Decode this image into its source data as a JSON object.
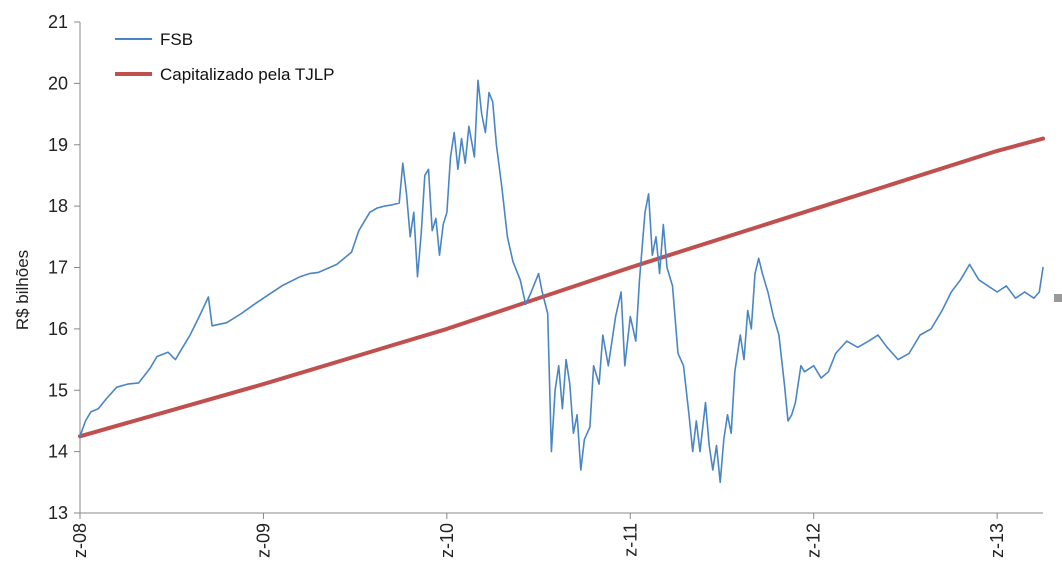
{
  "chart_data": {
    "type": "line",
    "ylabel": "R$ bilhões",
    "ylim": [
      13,
      21
    ],
    "yticks": [
      13,
      14,
      15,
      16,
      17,
      18,
      19,
      20,
      21
    ],
    "xlim": [
      2008.0,
      2013.25
    ],
    "xticks": [
      {
        "x": 2008,
        "label": "z-08"
      },
      {
        "x": 2009,
        "label": "z-09"
      },
      {
        "x": 2010,
        "label": "z-10"
      },
      {
        "x": 2011,
        "label": "z-11"
      },
      {
        "x": 2012,
        "label": "z-12"
      },
      {
        "x": 2013,
        "label": "z-13"
      }
    ],
    "grid": false,
    "legend_position": "top-left",
    "series": [
      {
        "name": "FSB",
        "color": "#4a86c5",
        "points": [
          [
            2008.0,
            14.25
          ],
          [
            2008.03,
            14.5
          ],
          [
            2008.06,
            14.65
          ],
          [
            2008.1,
            14.7
          ],
          [
            2008.14,
            14.85
          ],
          [
            2008.2,
            15.05
          ],
          [
            2008.26,
            15.1
          ],
          [
            2008.32,
            15.12
          ],
          [
            2008.38,
            15.35
          ],
          [
            2008.42,
            15.55
          ],
          [
            2008.48,
            15.62
          ],
          [
            2008.52,
            15.5
          ],
          [
            2008.56,
            15.7
          ],
          [
            2008.6,
            15.9
          ],
          [
            2008.65,
            16.2
          ],
          [
            2008.7,
            16.52
          ],
          [
            2008.72,
            16.05
          ],
          [
            2008.8,
            16.1
          ],
          [
            2008.88,
            16.25
          ],
          [
            2008.95,
            16.4
          ],
          [
            2009.0,
            16.5
          ],
          [
            2009.1,
            16.7
          ],
          [
            2009.2,
            16.85
          ],
          [
            2009.25,
            16.9
          ],
          [
            2009.3,
            16.92
          ],
          [
            2009.4,
            17.05
          ],
          [
            2009.48,
            17.25
          ],
          [
            2009.52,
            17.6
          ],
          [
            2009.58,
            17.9
          ],
          [
            2009.62,
            17.97
          ],
          [
            2009.66,
            18.0
          ],
          [
            2009.7,
            18.02
          ],
          [
            2009.74,
            18.05
          ],
          [
            2009.76,
            18.7
          ],
          [
            2009.78,
            18.2
          ],
          [
            2009.8,
            17.5
          ],
          [
            2009.82,
            17.9
          ],
          [
            2009.84,
            16.85
          ],
          [
            2009.86,
            17.55
          ],
          [
            2009.88,
            18.5
          ],
          [
            2009.9,
            18.6
          ],
          [
            2009.92,
            17.6
          ],
          [
            2009.94,
            17.8
          ],
          [
            2009.96,
            17.2
          ],
          [
            2009.98,
            17.7
          ],
          [
            2010.0,
            17.9
          ],
          [
            2010.02,
            18.8
          ],
          [
            2010.04,
            19.2
          ],
          [
            2010.06,
            18.6
          ],
          [
            2010.08,
            19.1
          ],
          [
            2010.1,
            18.7
          ],
          [
            2010.12,
            19.3
          ],
          [
            2010.15,
            18.8
          ],
          [
            2010.17,
            20.05
          ],
          [
            2010.19,
            19.5
          ],
          [
            2010.21,
            19.2
          ],
          [
            2010.23,
            19.85
          ],
          [
            2010.25,
            19.7
          ],
          [
            2010.27,
            19.0
          ],
          [
            2010.3,
            18.3
          ],
          [
            2010.33,
            17.5
          ],
          [
            2010.36,
            17.1
          ],
          [
            2010.4,
            16.8
          ],
          [
            2010.43,
            16.4
          ],
          [
            2010.46,
            16.6
          ],
          [
            2010.5,
            16.9
          ],
          [
            2010.52,
            16.6
          ],
          [
            2010.55,
            16.25
          ],
          [
            2010.57,
            14.0
          ],
          [
            2010.59,
            15.0
          ],
          [
            2010.61,
            15.4
          ],
          [
            2010.63,
            14.7
          ],
          [
            2010.65,
            15.5
          ],
          [
            2010.67,
            15.1
          ],
          [
            2010.69,
            14.3
          ],
          [
            2010.71,
            14.6
          ],
          [
            2010.73,
            13.7
          ],
          [
            2010.75,
            14.2
          ],
          [
            2010.78,
            14.4
          ],
          [
            2010.8,
            15.4
          ],
          [
            2010.83,
            15.1
          ],
          [
            2010.85,
            15.9
          ],
          [
            2010.88,
            15.4
          ],
          [
            2010.92,
            16.2
          ],
          [
            2010.95,
            16.6
          ],
          [
            2010.97,
            15.4
          ],
          [
            2011.0,
            16.2
          ],
          [
            2011.03,
            15.8
          ],
          [
            2011.05,
            16.8
          ],
          [
            2011.08,
            17.9
          ],
          [
            2011.1,
            18.2
          ],
          [
            2011.12,
            17.2
          ],
          [
            2011.14,
            17.5
          ],
          [
            2011.16,
            16.9
          ],
          [
            2011.18,
            17.7
          ],
          [
            2011.2,
            17.0
          ],
          [
            2011.23,
            16.7
          ],
          [
            2011.26,
            15.6
          ],
          [
            2011.29,
            15.4
          ],
          [
            2011.32,
            14.6
          ],
          [
            2011.34,
            14.0
          ],
          [
            2011.36,
            14.5
          ],
          [
            2011.38,
            14.0
          ],
          [
            2011.41,
            14.8
          ],
          [
            2011.43,
            14.1
          ],
          [
            2011.45,
            13.7
          ],
          [
            2011.47,
            14.1
          ],
          [
            2011.49,
            13.5
          ],
          [
            2011.51,
            14.2
          ],
          [
            2011.53,
            14.6
          ],
          [
            2011.55,
            14.3
          ],
          [
            2011.57,
            15.3
          ],
          [
            2011.6,
            15.9
          ],
          [
            2011.62,
            15.5
          ],
          [
            2011.64,
            16.3
          ],
          [
            2011.66,
            16.0
          ],
          [
            2011.68,
            16.9
          ],
          [
            2011.7,
            17.15
          ],
          [
            2011.72,
            16.9
          ],
          [
            2011.75,
            16.6
          ],
          [
            2011.78,
            16.2
          ],
          [
            2011.81,
            15.9
          ],
          [
            2011.84,
            15.1
          ],
          [
            2011.86,
            14.5
          ],
          [
            2011.88,
            14.6
          ],
          [
            2011.9,
            14.8
          ],
          [
            2011.93,
            15.4
          ],
          [
            2011.95,
            15.3
          ],
          [
            2012.0,
            15.4
          ],
          [
            2012.04,
            15.2
          ],
          [
            2012.08,
            15.3
          ],
          [
            2012.12,
            15.6
          ],
          [
            2012.18,
            15.8
          ],
          [
            2012.24,
            15.7
          ],
          [
            2012.3,
            15.8
          ],
          [
            2012.35,
            15.9
          ],
          [
            2012.4,
            15.7
          ],
          [
            2012.46,
            15.5
          ],
          [
            2012.52,
            15.6
          ],
          [
            2012.58,
            15.9
          ],
          [
            2012.64,
            16.0
          ],
          [
            2012.7,
            16.3
          ],
          [
            2012.75,
            16.6
          ],
          [
            2012.8,
            16.8
          ],
          [
            2012.85,
            17.05
          ],
          [
            2012.9,
            16.8
          ],
          [
            2012.95,
            16.7
          ],
          [
            2013.0,
            16.6
          ],
          [
            2013.05,
            16.7
          ],
          [
            2013.1,
            16.5
          ],
          [
            2013.15,
            16.6
          ],
          [
            2013.2,
            16.5
          ],
          [
            2013.23,
            16.6
          ],
          [
            2013.25,
            17.0
          ]
        ]
      },
      {
        "name": "Capitalizado pela TJLP",
        "color": "#c0504d",
        "points": [
          [
            2008.0,
            14.25
          ],
          [
            2009.0,
            15.1
          ],
          [
            2010.0,
            16.0
          ],
          [
            2011.0,
            17.0
          ],
          [
            2012.0,
            17.95
          ],
          [
            2013.0,
            18.9
          ],
          [
            2013.25,
            19.1
          ]
        ]
      }
    ]
  }
}
